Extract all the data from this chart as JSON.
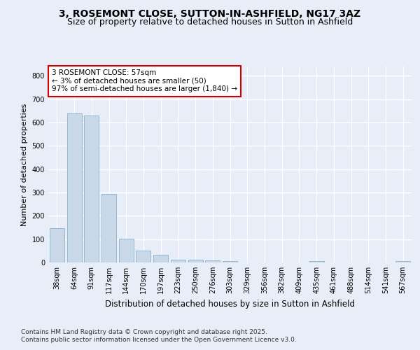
{
  "title": "3, ROSEMONT CLOSE, SUTTON-IN-ASHFIELD, NG17 3AZ",
  "subtitle": "Size of property relative to detached houses in Sutton in Ashfield",
  "xlabel": "Distribution of detached houses by size in Sutton in Ashfield",
  "ylabel": "Number of detached properties",
  "categories": [
    "38sqm",
    "64sqm",
    "91sqm",
    "117sqm",
    "144sqm",
    "170sqm",
    "197sqm",
    "223sqm",
    "250sqm",
    "276sqm",
    "303sqm",
    "329sqm",
    "356sqm",
    "382sqm",
    "409sqm",
    "435sqm",
    "461sqm",
    "488sqm",
    "514sqm",
    "541sqm",
    "567sqm"
  ],
  "values": [
    148,
    638,
    630,
    293,
    103,
    50,
    33,
    12,
    12,
    8,
    5,
    0,
    0,
    0,
    0,
    5,
    0,
    0,
    0,
    0,
    5
  ],
  "bar_color": "#c8d8e8",
  "bar_edge_color": "#8ab0cc",
  "annotation_box_text": "3 ROSEMONT CLOSE: 57sqm\n← 3% of detached houses are smaller (50)\n97% of semi-detached houses are larger (1,840) →",
  "annotation_box_color": "#cc0000",
  "bg_color": "#e8eef8",
  "plot_bg_color": "#e8eef8",
  "grid_color": "#ffffff",
  "ylim": [
    0,
    840
  ],
  "yticks": [
    0,
    100,
    200,
    300,
    400,
    500,
    600,
    700,
    800
  ],
  "footer_line1": "Contains HM Land Registry data © Crown copyright and database right 2025.",
  "footer_line2": "Contains public sector information licensed under the Open Government Licence v3.0.",
  "title_fontsize": 10,
  "subtitle_fontsize": 9,
  "annotation_fontsize": 7.5,
  "footer_fontsize": 6.5,
  "tick_fontsize": 7,
  "ylabel_fontsize": 8,
  "xlabel_fontsize": 8.5
}
